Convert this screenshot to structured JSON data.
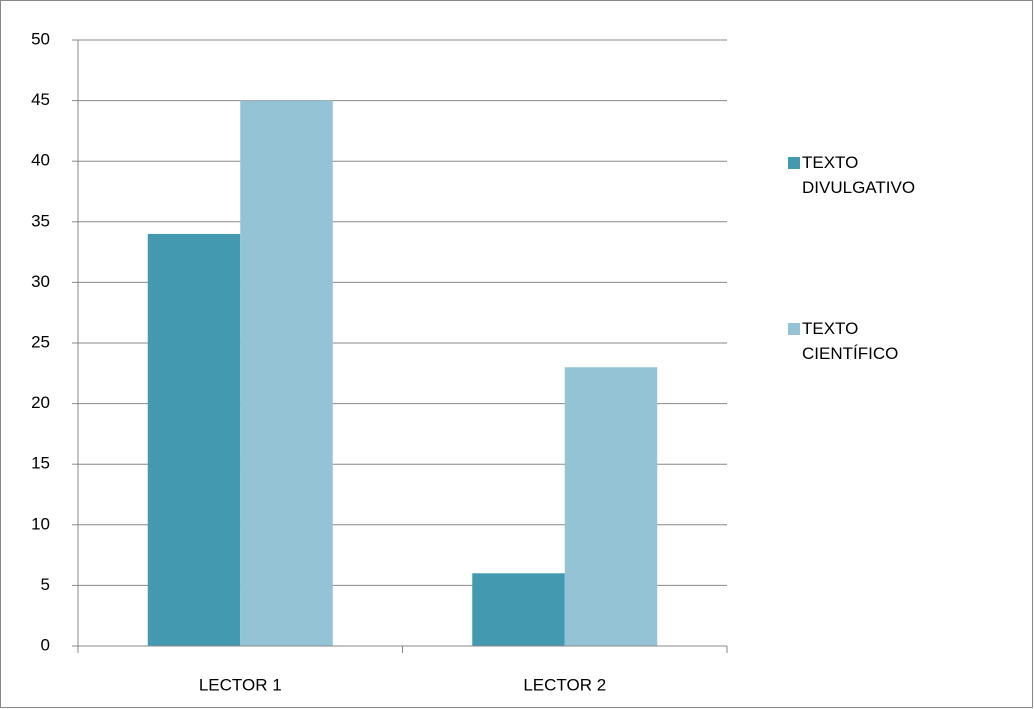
{
  "chart_data": {
    "type": "bar",
    "categories": [
      "LECTOR 1",
      "LECTOR 2"
    ],
    "series": [
      {
        "name": "TEXTO DIVULGATIVO",
        "color": "#4399b0",
        "values": [
          34,
          6
        ]
      },
      {
        "name": "TEXTO CIENTÍFICO",
        "color": "#93c3d5",
        "values": [
          45,
          23
        ]
      }
    ],
    "ylim": [
      0,
      50
    ],
    "yticks": [
      0,
      5,
      10,
      15,
      20,
      25,
      30,
      35,
      40,
      45,
      50
    ],
    "grid": true,
    "legend": "right"
  }
}
